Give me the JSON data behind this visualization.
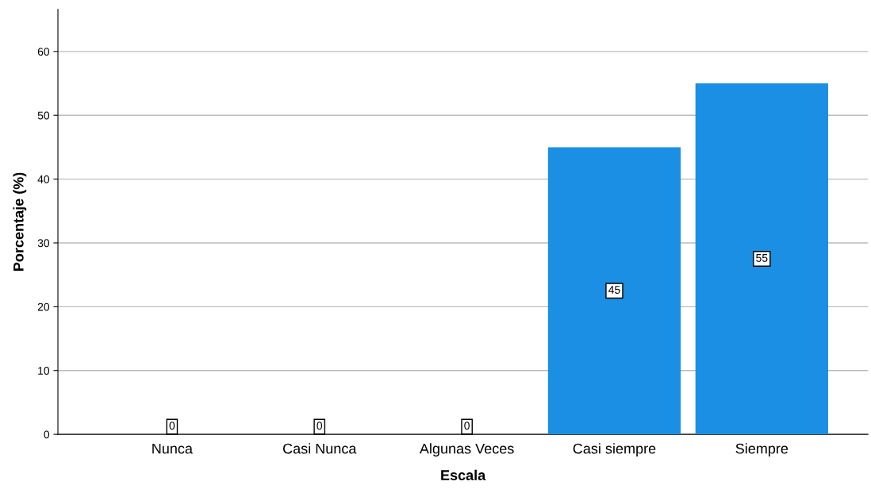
{
  "chart_data": {
    "type": "bar",
    "xlabel": "Escala",
    "ylabel": "Porcentaje (%)",
    "categories": [
      "Nunca",
      "Casi Nunca",
      "Algunas Veces",
      "Casi siempre",
      "Siempre"
    ],
    "values": [
      0,
      0,
      0,
      45,
      55
    ],
    "color": "#1a8fe3",
    "ylim": [
      0,
      66.6
    ],
    "yticks": [
      0,
      10,
      20,
      30,
      40,
      50,
      60
    ],
    "grid": "y",
    "data_labels": true,
    "legend": false
  }
}
